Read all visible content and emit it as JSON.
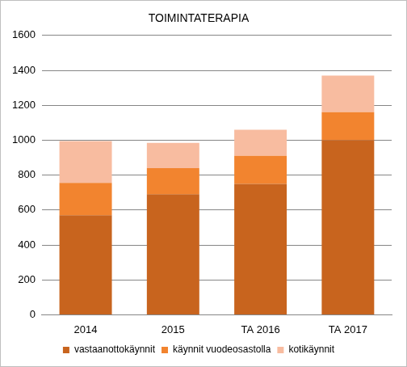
{
  "chart_data": {
    "type": "bar",
    "title": "TOIMINTATERAPIA",
    "categories": [
      "2014",
      "2015",
      "TA 2016",
      "TA 2017"
    ],
    "series": [
      {
        "name": "vastaanottokäynnit",
        "color": "#c8641e",
        "values": [
          570,
          690,
          750,
          1000
        ]
      },
      {
        "name": "käynnit vuodeosastolla",
        "color": "#f2842f",
        "values": [
          185,
          150,
          160,
          160
        ]
      },
      {
        "name": "kotikäynnit",
        "color": "#f8bca0",
        "values": [
          240,
          145,
          150,
          210
        ]
      }
    ],
    "stacked": true,
    "ylim": [
      0,
      1600
    ],
    "yticks": [
      0,
      200,
      400,
      600,
      800,
      1000,
      1200,
      1400,
      1600
    ],
    "grid": true,
    "legend": "bottom"
  }
}
